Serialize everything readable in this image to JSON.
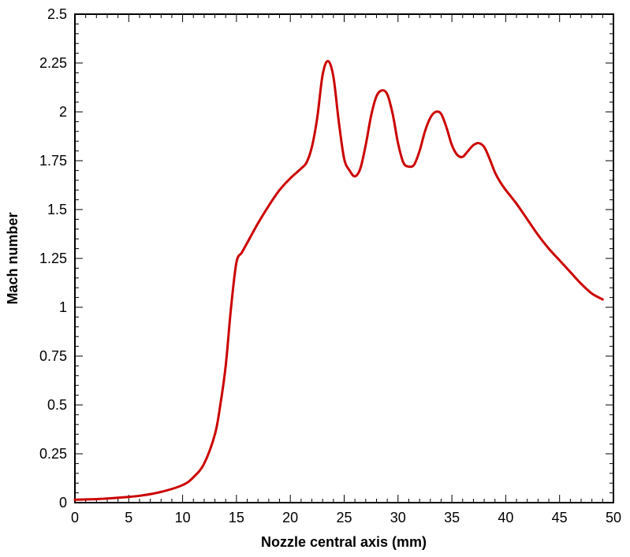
{
  "chart_data": {
    "type": "line",
    "title": "",
    "xlabel": "Nozzle central axis (mm)",
    "ylabel": "Mach number",
    "xlim": [
      0,
      50
    ],
    "ylim": [
      0,
      2.5
    ],
    "x_ticks": [
      0,
      5,
      10,
      15,
      20,
      25,
      30,
      35,
      40,
      45,
      50
    ],
    "x_tick_labels": [
      "0",
      "5",
      "10",
      "15",
      "20",
      "25",
      "30",
      "35",
      "40",
      "45",
      "50"
    ],
    "y_ticks": [
      0,
      0.25,
      0.5,
      0.75,
      1,
      1.25,
      1.5,
      1.75,
      2,
      2.25,
      2.5
    ],
    "y_tick_labels": [
      "0",
      "0.25",
      "0.5",
      "0.75",
      "1",
      "1.25",
      "1.5",
      "1.75",
      "2",
      "2.25",
      "2.5"
    ],
    "grid": false,
    "line_color": "#cc0000",
    "series": [
      {
        "x": [
          0,
          2,
          4,
          6,
          8,
          10,
          11,
          12,
          13,
          13.5,
          14,
          14.5,
          15,
          15.5,
          16,
          17,
          18,
          19,
          20,
          21,
          21.5,
          22,
          22.5,
          23,
          23.5,
          24,
          24.5,
          25,
          25.5,
          26,
          26.5,
          27,
          27.5,
          28,
          28.5,
          29,
          29.5,
          30,
          30.5,
          31,
          31.5,
          32,
          32.5,
          33,
          33.5,
          34,
          34.5,
          35,
          35.5,
          36,
          36.5,
          37,
          37.5,
          38,
          38.5,
          39,
          39.5,
          40,
          41,
          42,
          43,
          44,
          45,
          46,
          47,
          48,
          49
        ],
        "y": [
          0.015,
          0.018,
          0.025,
          0.035,
          0.055,
          0.09,
          0.13,
          0.2,
          0.35,
          0.5,
          0.7,
          1.0,
          1.23,
          1.28,
          1.33,
          1.43,
          1.52,
          1.6,
          1.66,
          1.71,
          1.74,
          1.82,
          1.97,
          2.19,
          2.26,
          2.18,
          1.95,
          1.76,
          1.7,
          1.67,
          1.71,
          1.83,
          1.98,
          2.08,
          2.11,
          2.09,
          1.99,
          1.84,
          1.74,
          1.72,
          1.73,
          1.8,
          1.9,
          1.97,
          2.0,
          1.99,
          1.92,
          1.83,
          1.78,
          1.77,
          1.8,
          1.83,
          1.84,
          1.82,
          1.76,
          1.69,
          1.64,
          1.6,
          1.53,
          1.45,
          1.37,
          1.3,
          1.24,
          1.18,
          1.12,
          1.07,
          1.04
        ]
      }
    ]
  }
}
